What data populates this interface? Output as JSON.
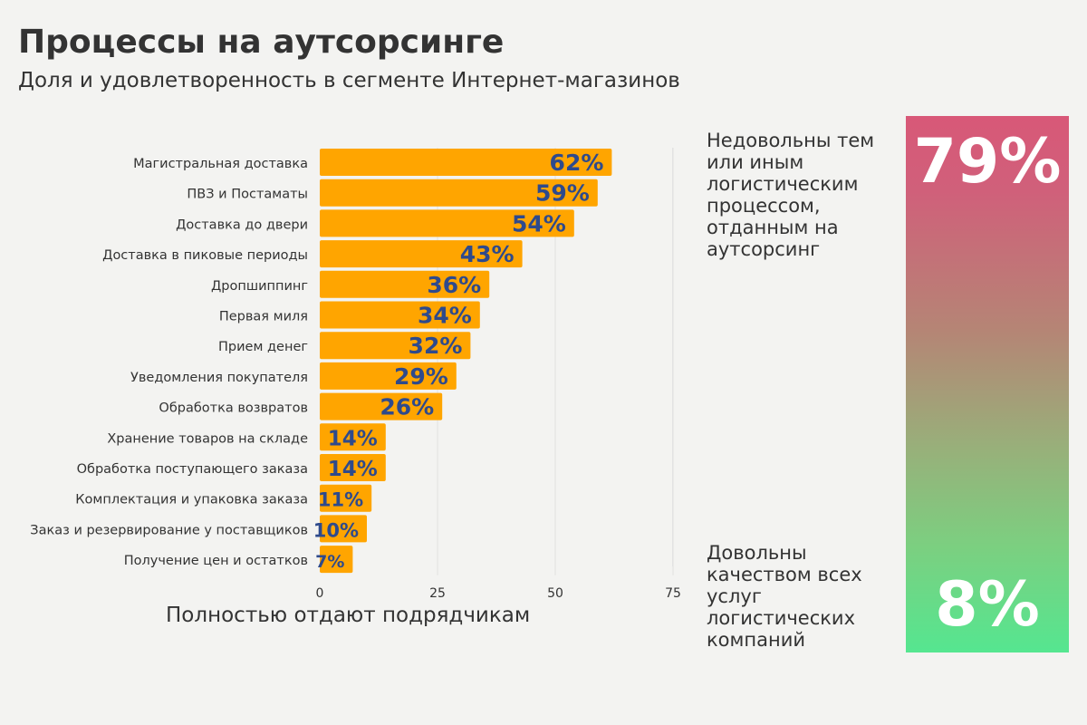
{
  "header": {
    "title": "Процессы на аутсорсинге",
    "subtitle": "Доля и удовлетворенность в сегменте Интернет-магазинов"
  },
  "colors": {
    "bar": "#ffa500",
    "bar_label": "#2e4a8c",
    "gauge_top": "#d85878",
    "gauge_bottom": "#55e690"
  },
  "chart_data": {
    "type": "bar",
    "orientation": "horizontal",
    "categories": [
      "Магистральная доставка",
      "ПВЗ и Постаматы",
      "Доставка до двери",
      "Доставка в пиковые периоды",
      "Дропшиппинг",
      "Первая миля",
      "Прием денег",
      "Уведомления покупателя",
      "Обработка возвратов",
      "Хранение товаров на складе",
      "Обработка поступающего заказа",
      "Комплектация и упаковка заказа",
      "Заказ и резервирование у поставщиков",
      "Получение цен и остатков"
    ],
    "values": [
      62,
      59,
      54,
      43,
      36,
      34,
      32,
      29,
      26,
      14,
      14,
      11,
      10,
      7
    ],
    "value_labels": [
      "62%",
      "59%",
      "54%",
      "43%",
      "36%",
      "34%",
      "32%",
      "29%",
      "26%",
      "14%",
      "14%",
      "11%",
      "10%",
      "7%"
    ],
    "xlabel": "Полностью отдают подрядчикам",
    "ylabel": "",
    "xlim": [
      0,
      75
    ],
    "xticks": [
      0,
      25,
      50,
      75
    ],
    "xtick_labels": [
      "0",
      "25",
      "50",
      "75"
    ],
    "grid": true
  },
  "side_panel": {
    "dissatisfied_text": "Недовольны тем или иным логистическим процессом, отданным на аутсорсинг",
    "dissatisfied_value": "79%",
    "satisfied_text": "Довольны качеством всех услуг логистических компаний",
    "satisfied_value": "8%"
  }
}
